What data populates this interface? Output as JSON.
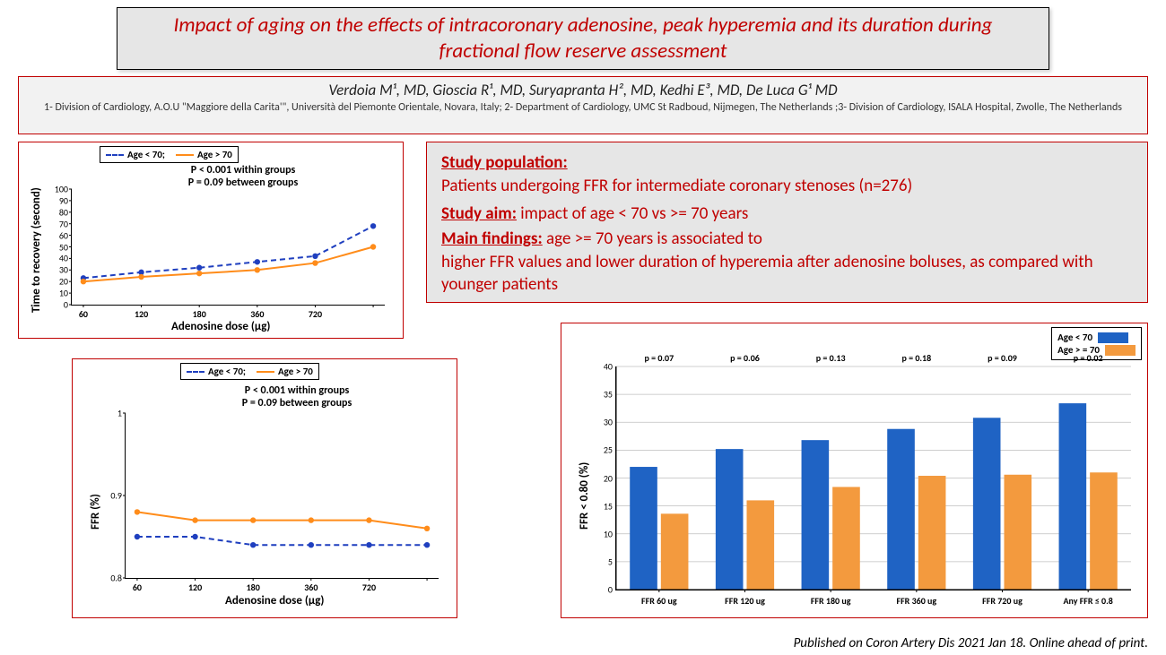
{
  "title": "Impact of aging on the effects of intracoronary adenosine, peak hyperemia and its duration during fractional flow reserve assessment",
  "authors_html": "Verdoia M¹, MD, Gioscia R¹, MD, Suryapranta H², MD, Kedhi E³, MD, De Luca G¹ MD",
  "affiliations": "1- Division of Cardiology, A.O.U \"Maggiore della Carita'\", Università del Piemonte Orientale, Novara, Italy; 2- Department of Cardiology, UMC St Radboud, Nijmegen, The Netherlands ;3- Division of Cardiology, ISALA Hospital, Zwolle, The Netherlands",
  "summary": {
    "pop_hd": "Study population:",
    "pop": "Patients undergoing FFR for intermediate coronary stenoses (n=276)",
    "aim_hd": "Study aim:",
    "aim": " impact of age < 70 vs >= 70 years",
    "main_hd": "Main findings:",
    "main1": " age >= 70 years is associated to",
    "main2": "higher FFR values and lower duration of hyperemia after adenosine boluses, as compared with younger patients"
  },
  "footnote": "Published on Coron Artery Dis 2021 Jan 18. Online ahead of print.",
  "colors": {
    "young": "#1f3fbf",
    "old": "#ff8c1a",
    "bar_young": "#1f63c4",
    "bar_old": "#f39a3e",
    "accent": "#c00000",
    "grid": "#bfbfbf"
  },
  "legend": {
    "young": "Age < 70;",
    "old": "Age > 70",
    "bar_young": "Age < 70",
    "bar_old": "Age > = 70"
  },
  "pvals": {
    "within": "P < 0.001 within groups",
    "between": "P = 0.09 between groups"
  },
  "chart1": {
    "type": "line",
    "ylabel": "Time to recovery (second)",
    "xlabel": "Adenosine dose (µg)",
    "x_categories": [
      "60",
      "120",
      "180",
      "360",
      "720",
      ""
    ],
    "yticks": [
      0,
      10,
      20,
      30,
      40,
      50,
      60,
      70,
      80,
      90,
      100
    ],
    "ylim": [
      0,
      100
    ],
    "series_young": [
      23,
      28,
      32,
      37,
      42,
      68
    ],
    "series_old": [
      20,
      24,
      27,
      30,
      36,
      50
    ]
  },
  "chart2": {
    "type": "line",
    "ylabel": "FFR  (%)",
    "xlabel": "Adenosine dose (µg)",
    "x_categories": [
      "60",
      "120",
      "180",
      "360",
      "720",
      ""
    ],
    "yticks": [
      0.8,
      0.9,
      1
    ],
    "ylim": [
      0.8,
      1.0
    ],
    "series_young": [
      0.85,
      0.85,
      0.84,
      0.84,
      0.84,
      0.84
    ],
    "series_old": [
      0.88,
      0.87,
      0.87,
      0.87,
      0.87,
      0.86
    ]
  },
  "chart3": {
    "type": "bar",
    "ylabel": "FFR < 0.80 (%)",
    "yticks": [
      0,
      5,
      10,
      15,
      20,
      25,
      30,
      35,
      40
    ],
    "ylim": [
      0,
      40
    ],
    "categories": [
      "FFR 60 ug",
      "FFR 120 ug",
      "FFR 180 ug",
      "FFR 360 ug",
      "FFR 720 ug",
      "Any FFR ≤ 0.8"
    ],
    "pvals": [
      "p = 0.07",
      "p = 0.06",
      "p = 0.13",
      "p = 0.18",
      "p = 0.09",
      "p = 0.02"
    ],
    "young": [
      22.0,
      25.2,
      26.8,
      28.8,
      30.8,
      33.4
    ],
    "old": [
      13.6,
      16.0,
      18.4,
      20.4,
      20.6,
      21.0
    ]
  }
}
